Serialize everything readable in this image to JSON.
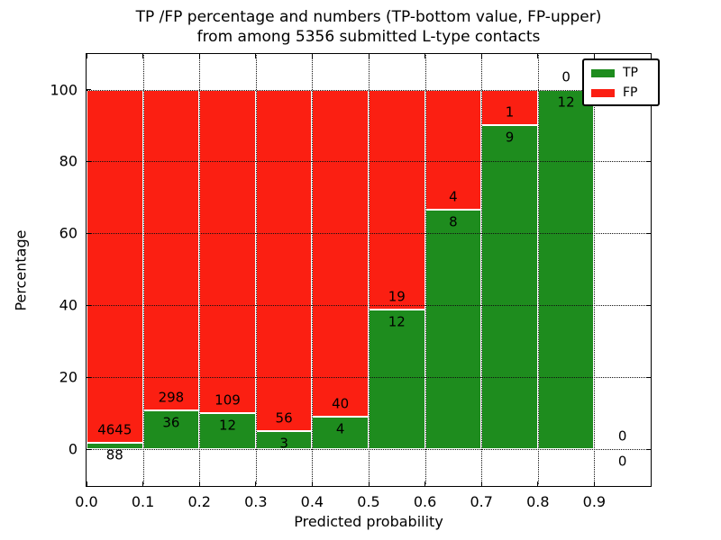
{
  "title": {
    "line1": "TP /FP percentage and numbers (TP-bottom value, FP-upper)",
    "line2": "from among 5356 submitted L-type contacts"
  },
  "axes": {
    "xlabel": "Predicted probability",
    "ylabel": "Percentage"
  },
  "chart_data": {
    "type": "bar",
    "stacked": true,
    "title": "TP /FP percentage and numbers (TP-bottom value, FP-upper) from among 5356 submitted L-type contacts",
    "total_submitted": 5356,
    "xlabel": "Predicted probability",
    "ylabel": "Percentage",
    "xlim": [
      0.0,
      1.0
    ],
    "ylim": [
      -10,
      110
    ],
    "x_ticks": [
      "0.0",
      "0.1",
      "0.2",
      "0.3",
      "0.4",
      "0.5",
      "0.6",
      "0.7",
      "0.8",
      "0.9"
    ],
    "y_ticks": [
      0,
      20,
      40,
      60,
      80,
      100
    ],
    "grid": true,
    "grid_style": "dotted",
    "legend_position": "upper right",
    "series": [
      {
        "name": "TP",
        "color": "#1e8c1e"
      },
      {
        "name": "FP",
        "color": "#fb1f12"
      }
    ],
    "bins": [
      {
        "x_start": 0.0,
        "x_end": 0.1,
        "tp": 88,
        "fp": 4645
      },
      {
        "x_start": 0.1,
        "x_end": 0.2,
        "tp": 36,
        "fp": 298
      },
      {
        "x_start": 0.2,
        "x_end": 0.3,
        "tp": 12,
        "fp": 109
      },
      {
        "x_start": 0.3,
        "x_end": 0.4,
        "tp": 3,
        "fp": 56
      },
      {
        "x_start": 0.4,
        "x_end": 0.5,
        "tp": 4,
        "fp": 40
      },
      {
        "x_start": 0.5,
        "x_end": 0.6,
        "tp": 12,
        "fp": 19
      },
      {
        "x_start": 0.6,
        "x_end": 0.7,
        "tp": 8,
        "fp": 4
      },
      {
        "x_start": 0.7,
        "x_end": 0.8,
        "tp": 9,
        "fp": 1
      },
      {
        "x_start": 0.8,
        "x_end": 0.9,
        "tp": 12,
        "fp": 0
      },
      {
        "x_start": 0.9,
        "x_end": 1.0,
        "tp": 0,
        "fp": 0
      }
    ],
    "bar_semantics": "green TP segment height = tp/(tp+fp)*100, red FP stacked above to 100%; numeric labels show raw counts (FP above boundary, TP below boundary)"
  }
}
